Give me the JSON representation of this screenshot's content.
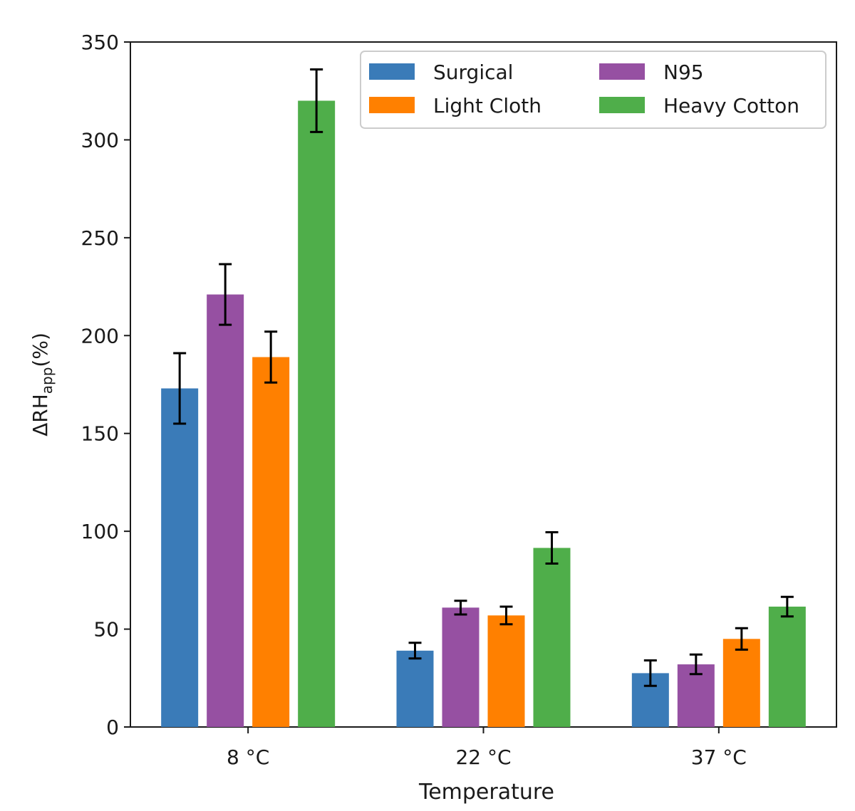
{
  "chart_data": {
    "type": "bar",
    "title": "",
    "xlabel": "Temperature",
    "ylabel_main": "ΔRH",
    "ylabel_sub": "app",
    "ylabel_suffix": "(%)",
    "categories": [
      "8 °C",
      "22 °C",
      "37 °C"
    ],
    "ylim": [
      0,
      350
    ],
    "yticks": [
      0,
      50,
      100,
      150,
      200,
      250,
      300,
      350
    ],
    "legend_position": "top-right",
    "legend_columns": 2,
    "series": [
      {
        "name": "Surgical",
        "color": "#3a7bb8",
        "values": [
          173,
          39,
          27.5
        ],
        "errors": [
          18,
          4,
          6.5
        ]
      },
      {
        "name": "N95",
        "color": "#9650a2",
        "values": [
          221,
          61,
          32
        ],
        "errors": [
          15.5,
          3.5,
          5
        ]
      },
      {
        "name": "Light Cloth",
        "color": "#ff8000",
        "values": [
          189,
          57,
          45
        ],
        "errors": [
          13,
          4.5,
          5.5
        ]
      },
      {
        "name": "Heavy Cotton",
        "color": "#4fae4a",
        "values": [
          320,
          91.5,
          61.5
        ],
        "errors": [
          16,
          8,
          5
        ]
      }
    ],
    "legend_order": [
      "Surgical",
      "Light Cloth",
      "N95",
      "Heavy Cotton"
    ]
  }
}
